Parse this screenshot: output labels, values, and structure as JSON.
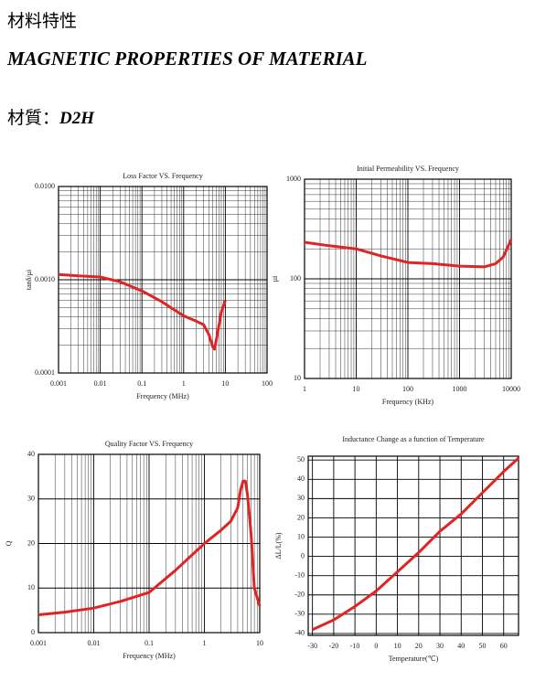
{
  "header": {
    "title_cn": "材料特性",
    "title_en": "MAGNETIC PROPERTIES OF MATERIAL",
    "material_label": "材質：",
    "material": "D2H"
  },
  "chart_data": [
    {
      "type": "line",
      "title": "Loss Factor VS. Frequency",
      "xlabel": "Frequency (MHz)",
      "ylabel": "tanδ/μi",
      "xlog": true,
      "ylog": true,
      "grid": true,
      "minor_grid": true,
      "xlim": [
        0.001,
        100
      ],
      "xticks": [
        0.001,
        0.01,
        0.1,
        1,
        10,
        100
      ],
      "ylim": [
        0.0001,
        0.01
      ],
      "yticks": [
        {
          "value": 0.0001,
          "label": "0.0001"
        },
        {
          "value": 0.001,
          "label": "0.0010"
        },
        {
          "value": 0.01,
          "label": "0.0100"
        }
      ],
      "series": [
        {
          "color": "#e02424",
          "x": [
            0.001,
            0.003,
            0.01,
            0.03,
            0.1,
            0.3,
            1,
            2,
            3,
            4,
            5,
            5.5,
            6,
            7,
            8,
            10
          ],
          "values": [
            0.00114,
            0.0011,
            0.00107,
            0.00095,
            0.00076,
            0.00058,
            0.00041,
            0.00036,
            0.00033,
            0.00026,
            0.00019,
            0.00018,
            0.00022,
            0.00032,
            0.00045,
            0.0006
          ]
        }
      ]
    },
    {
      "type": "line",
      "title": "Initial Permeability VS. Frequency",
      "xlabel": "Frequency (KHz)",
      "ylabel": "μi",
      "xlog": true,
      "ylog": true,
      "grid": true,
      "minor_grid": true,
      "xlim": [
        1,
        10000
      ],
      "xticks": [
        1,
        10,
        100,
        1000,
        10000
      ],
      "ylim": [
        10,
        1000
      ],
      "yticks": [
        10,
        100,
        1000
      ],
      "series": [
        {
          "color": "#e02424",
          "x": [
            1,
            3,
            10,
            30,
            100,
            300,
            1000,
            3000,
            5000,
            7000,
            10000
          ],
          "values": [
            233,
            215,
            200,
            170,
            146,
            142,
            134,
            132,
            142,
            165,
            248
          ]
        }
      ]
    },
    {
      "type": "line",
      "title": "Quality Factor VS. Frequency",
      "xlabel": "Frequency (MHz)",
      "ylabel": "Q",
      "xlog": true,
      "ylog": false,
      "grid": true,
      "minor_grid": true,
      "xlim": [
        0.001,
        10
      ],
      "xticks": [
        0.001,
        0.01,
        0.1,
        1,
        10
      ],
      "ylim": [
        0,
        40
      ],
      "yticks": [
        0,
        10,
        20,
        30,
        40
      ],
      "series": [
        {
          "color": "#e02424",
          "x": [
            0.001,
            0.003,
            0.01,
            0.03,
            0.1,
            0.3,
            1,
            2,
            3,
            4,
            4.5,
            5,
            5.5,
            6,
            7,
            8,
            10
          ],
          "values": [
            4,
            4.6,
            5.5,
            7,
            9,
            14,
            20,
            23,
            25,
            28,
            32,
            34,
            34,
            31,
            22,
            10,
            6
          ]
        }
      ]
    },
    {
      "type": "line",
      "title": "Inductance Change as a function of Temperature",
      "xlabel": "Temperature(℃)",
      "ylabel": "ΔL/L(%)",
      "xlog": false,
      "ylog": false,
      "grid": true,
      "minor_grid": false,
      "xlim": [
        -32,
        67
      ],
      "xticks": [
        -30,
        -20,
        -10,
        0,
        10,
        20,
        30,
        40,
        50,
        60
      ],
      "ylim": [
        -41,
        52
      ],
      "yticks": [
        -40,
        -30,
        -20,
        -10,
        0,
        10,
        20,
        30,
        40,
        50
      ],
      "series": [
        {
          "color": "#e02424",
          "x": [
            -30,
            -20,
            -10,
            0,
            10,
            20,
            30,
            40,
            50,
            60,
            67
          ],
          "values": [
            -38,
            -33,
            -26,
            -18,
            -8,
            2,
            13,
            22,
            33,
            44,
            51
          ]
        }
      ]
    }
  ]
}
